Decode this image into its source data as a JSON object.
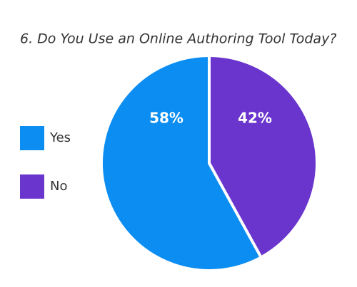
{
  "chart_data": {
    "type": "pie",
    "title": "6. Do You Use an Online Authoring Tool Today?",
    "categories": [
      "Yes",
      "No"
    ],
    "values": [
      58,
      42
    ],
    "value_labels": [
      "58%",
      "42%"
    ],
    "colors": [
      "#0b8df2",
      "#6a35cd"
    ]
  }
}
